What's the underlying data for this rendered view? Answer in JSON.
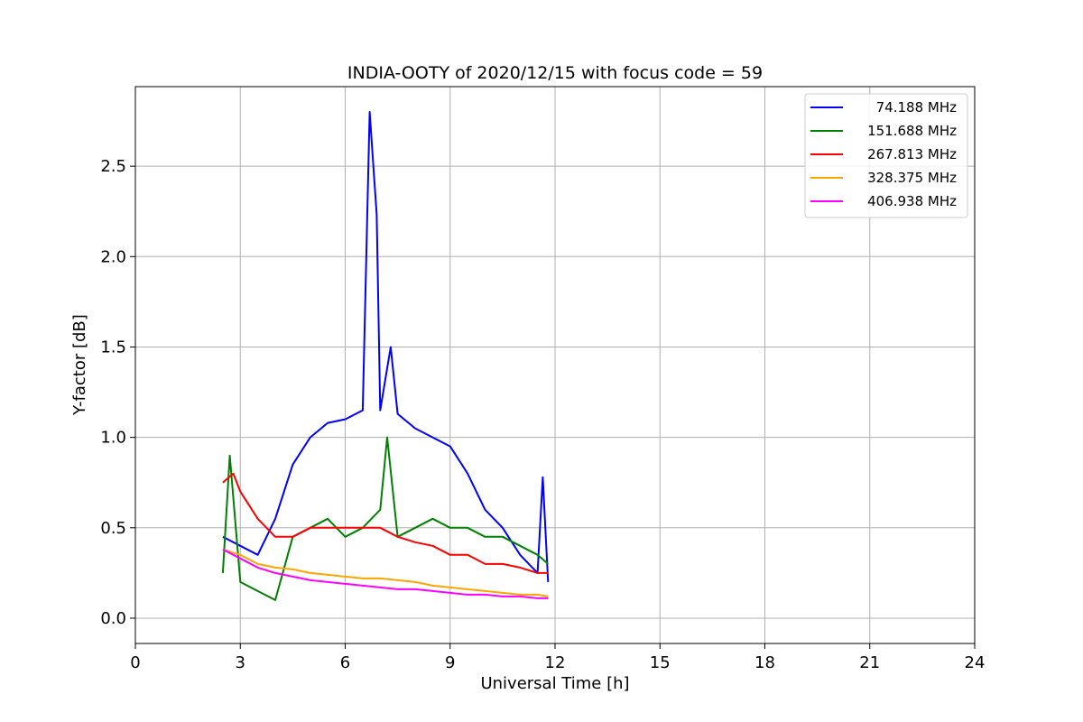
{
  "chart_data": {
    "type": "line",
    "title": "INDIA-OOTY of 2020/12/15 with focus code = 59",
    "xlabel": "Universal Time [h]",
    "ylabel": "Y-factor [dB]",
    "xlim": [
      0,
      24
    ],
    "ylim": [
      -0.14,
      2.94
    ],
    "xticks": [
      0,
      3,
      6,
      9,
      12,
      15,
      18,
      21,
      24
    ],
    "xtick_labels": [
      "0",
      "3",
      "6",
      "9",
      "12",
      "15",
      "18",
      "21",
      "24"
    ],
    "yticks": [
      0.0,
      0.5,
      1.0,
      1.5,
      2.0,
      2.5
    ],
    "ytick_labels": [
      "0.0",
      "0.5",
      "1.0",
      "1.5",
      "2.0",
      "2.5"
    ],
    "grid": true,
    "legend_position": "top-right",
    "series": [
      {
        "name": "74.188 MHz",
        "color": "#0000ff",
        "x": [
          2.5,
          3.0,
          3.5,
          4.0,
          4.5,
          5.0,
          5.5,
          6.0,
          6.5,
          6.7,
          6.9,
          7.0,
          7.3,
          7.5,
          8.0,
          8.5,
          9.0,
          9.5,
          10.0,
          10.5,
          11.0,
          11.5,
          11.65,
          11.8
        ],
        "y": [
          0.45,
          0.4,
          0.35,
          0.55,
          0.85,
          1.0,
          1.08,
          1.1,
          1.15,
          2.8,
          2.23,
          1.15,
          1.5,
          1.13,
          1.05,
          1.0,
          0.95,
          0.8,
          0.6,
          0.5,
          0.35,
          0.25,
          0.78,
          0.2
        ]
      },
      {
        "name": "151.688 MHz",
        "color": "#008000",
        "x": [
          2.5,
          2.7,
          3.0,
          3.5,
          4.0,
          4.5,
          5.0,
          5.5,
          6.0,
          6.5,
          7.0,
          7.2,
          7.5,
          8.0,
          8.5,
          9.0,
          9.5,
          10.0,
          10.5,
          11.0,
          11.5,
          11.8
        ],
        "y": [
          0.25,
          0.9,
          0.2,
          0.15,
          0.1,
          0.45,
          0.5,
          0.55,
          0.45,
          0.5,
          0.6,
          1.0,
          0.45,
          0.5,
          0.55,
          0.5,
          0.5,
          0.45,
          0.45,
          0.4,
          0.35,
          0.3
        ]
      },
      {
        "name": "267.813 MHz",
        "color": "#ff0000",
        "x": [
          2.5,
          2.8,
          3.0,
          3.5,
          4.0,
          4.5,
          5.0,
          5.5,
          6.0,
          6.5,
          7.0,
          7.5,
          8.0,
          8.5,
          9.0,
          9.5,
          10.0,
          10.5,
          11.0,
          11.5,
          11.8
        ],
        "y": [
          0.75,
          0.8,
          0.7,
          0.55,
          0.45,
          0.45,
          0.5,
          0.5,
          0.5,
          0.5,
          0.5,
          0.45,
          0.42,
          0.4,
          0.35,
          0.35,
          0.3,
          0.3,
          0.28,
          0.25,
          0.25
        ]
      },
      {
        "name": "328.375 MHz",
        "color": "#ffa500",
        "x": [
          2.5,
          3.0,
          3.5,
          4.0,
          4.5,
          5.0,
          5.5,
          6.0,
          6.5,
          7.0,
          7.5,
          8.0,
          8.5,
          9.0,
          9.5,
          10.0,
          10.5,
          11.0,
          11.5,
          11.8
        ],
        "y": [
          0.38,
          0.35,
          0.3,
          0.28,
          0.27,
          0.25,
          0.24,
          0.23,
          0.22,
          0.22,
          0.21,
          0.2,
          0.18,
          0.17,
          0.16,
          0.15,
          0.14,
          0.13,
          0.13,
          0.12
        ]
      },
      {
        "name": "406.938 MHz",
        "color": "#ff00ff",
        "x": [
          2.5,
          3.0,
          3.5,
          4.0,
          4.5,
          5.0,
          5.5,
          6.0,
          6.5,
          7.0,
          7.5,
          8.0,
          8.5,
          9.0,
          9.5,
          10.0,
          10.5,
          11.0,
          11.5,
          11.8
        ],
        "y": [
          0.38,
          0.33,
          0.28,
          0.25,
          0.23,
          0.21,
          0.2,
          0.19,
          0.18,
          0.17,
          0.16,
          0.16,
          0.15,
          0.14,
          0.13,
          0.13,
          0.12,
          0.12,
          0.11,
          0.11
        ]
      }
    ]
  }
}
